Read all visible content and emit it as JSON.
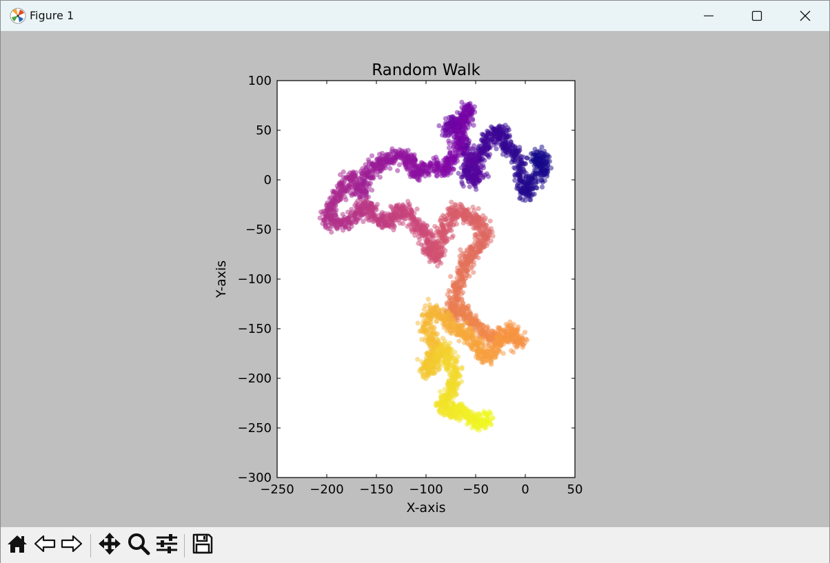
{
  "window": {
    "title": "Figure 1",
    "icons": {
      "app": "matplotlib-icon",
      "minimize": "minimize-icon",
      "maximize": "maximize-icon",
      "close": "close-icon"
    }
  },
  "toolbar": {
    "buttons": [
      {
        "name": "home-button",
        "icon": "home-icon"
      },
      {
        "name": "back-button",
        "icon": "back-arrow-icon"
      },
      {
        "name": "forward-button",
        "icon": "forward-arrow-icon"
      },
      {
        "name": "pan-button",
        "icon": "move-icon"
      },
      {
        "name": "zoom-button",
        "icon": "magnifier-icon"
      },
      {
        "name": "configure-subplots-button",
        "icon": "sliders-icon"
      },
      {
        "name": "save-button",
        "icon": "floppy-disk-icon"
      }
    ]
  },
  "chart_data": {
    "type": "scatter",
    "title": "Random Walk",
    "xlabel": "X-axis",
    "ylabel": "Y-axis",
    "xlim": [
      -250,
      50
    ],
    "ylim": [
      -300,
      100
    ],
    "xticks": [
      -250,
      -200,
      -150,
      -100,
      -50,
      0,
      50
    ],
    "yticks": [
      100,
      50,
      0,
      -50,
      -100,
      -150,
      -200,
      -250,
      -300
    ],
    "grid": false,
    "colormap": "plasma",
    "color_order": "step index, start dark blue (#0d0887) to end yellow (#f0f921)",
    "marker_alpha": 0.5,
    "start_region": [
      10,
      15
    ],
    "end_region": [
      -40,
      -240
    ],
    "path": [
      [
        10,
        15
      ],
      [
        15,
        25
      ],
      [
        20,
        10
      ],
      [
        5,
        -5
      ],
      [
        0,
        -15
      ],
      [
        -5,
        5
      ],
      [
        -10,
        25
      ],
      [
        -20,
        35
      ],
      [
        -25,
        50
      ],
      [
        -35,
        45
      ],
      [
        -40,
        30
      ],
      [
        -50,
        20
      ],
      [
        -60,
        10
      ],
      [
        -55,
        0
      ],
      [
        -45,
        5
      ],
      [
        -55,
        25
      ],
      [
        -65,
        40
      ],
      [
        -70,
        60
      ],
      [
        -80,
        50
      ],
      [
        -60,
        60
      ],
      [
        -58,
        75
      ],
      [
        -65,
        45
      ],
      [
        -75,
        20
      ],
      [
        -80,
        10
      ],
      [
        -95,
        15
      ],
      [
        -110,
        5
      ],
      [
        -115,
        20
      ],
      [
        -125,
        25
      ],
      [
        -140,
        20
      ],
      [
        -150,
        15
      ],
      [
        -160,
        5
      ],
      [
        -165,
        -15
      ],
      [
        -175,
        5
      ],
      [
        -185,
        -10
      ],
      [
        -195,
        -25
      ],
      [
        -200,
        -40
      ],
      [
        -185,
        -45
      ],
      [
        -170,
        -35
      ],
      [
        -160,
        -25
      ],
      [
        -150,
        -35
      ],
      [
        -140,
        -45
      ],
      [
        -130,
        -35
      ],
      [
        -120,
        -30
      ],
      [
        -110,
        -45
      ],
      [
        -100,
        -55
      ],
      [
        -95,
        -70
      ],
      [
        -90,
        -80
      ],
      [
        -85,
        -60
      ],
      [
        -80,
        -45
      ],
      [
        -70,
        -30
      ],
      [
        -60,
        -35
      ],
      [
        -50,
        -40
      ],
      [
        -40,
        -50
      ],
      [
        -45,
        -65
      ],
      [
        -55,
        -75
      ],
      [
        -60,
        -85
      ],
      [
        -65,
        -100
      ],
      [
        -70,
        -115
      ],
      [
        -75,
        -135
      ],
      [
        -65,
        -130
      ],
      [
        -55,
        -140
      ],
      [
        -45,
        -150
      ],
      [
        -35,
        -160
      ],
      [
        -20,
        -155
      ],
      [
        -5,
        -165
      ],
      [
        -15,
        -150
      ],
      [
        -30,
        -170
      ],
      [
        -40,
        -180
      ],
      [
        -50,
        -165
      ],
      [
        -60,
        -155
      ],
      [
        -70,
        -150
      ],
      [
        -80,
        -140
      ],
      [
        -95,
        -130
      ],
      [
        -100,
        -150
      ],
      [
        -90,
        -165
      ],
      [
        -95,
        -180
      ],
      [
        -100,
        -195
      ],
      [
        -90,
        -180
      ],
      [
        -80,
        -170
      ],
      [
        -75,
        -185
      ],
      [
        -70,
        -200
      ],
      [
        -75,
        -215
      ],
      [
        -85,
        -225
      ],
      [
        -75,
        -235
      ],
      [
        -65,
        -230
      ],
      [
        -55,
        -240
      ],
      [
        -45,
        -245
      ],
      [
        -35,
        -238
      ]
    ]
  }
}
